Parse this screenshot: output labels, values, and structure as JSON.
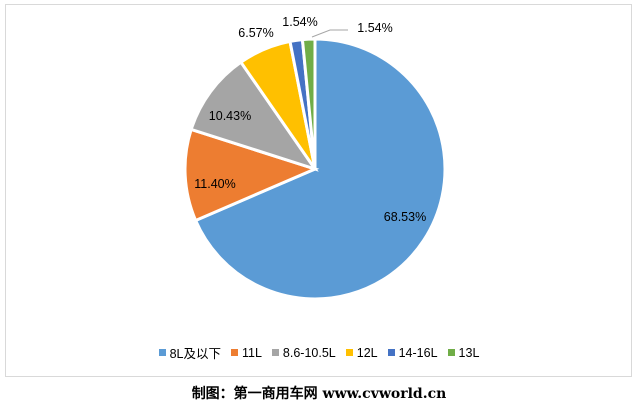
{
  "chart_data": {
    "type": "pie",
    "start": "top, clockwise",
    "legend_position": "bottom",
    "series": [
      {
        "name": "8L及以下",
        "value": 68.53,
        "label": "68.53%",
        "color": "#5B9BD5"
      },
      {
        "name": "11L",
        "value": 11.4,
        "label": "11.40%",
        "color": "#ED7D31"
      },
      {
        "name": "8.6-10.5L",
        "value": 10.43,
        "label": "10.43%",
        "color": "#A5A5A5"
      },
      {
        "name": "12L",
        "value": 6.57,
        "label": "6.57%",
        "color": "#FFC000"
      },
      {
        "name": "14-16L",
        "value": 1.54,
        "label": "1.54%",
        "color": "#4472C4"
      },
      {
        "name": "13L",
        "value": 1.54,
        "label": "1.54%",
        "color": "#70AD47"
      }
    ]
  },
  "caption": "制图：第一商用车网 www.cvworld.cn"
}
